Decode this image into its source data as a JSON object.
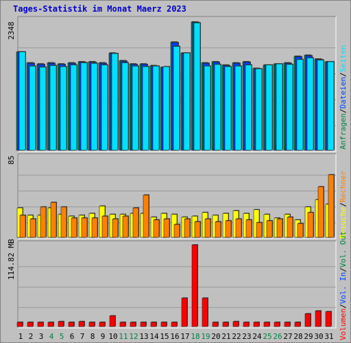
{
  "title": "Tages-Statistik im Monat Maerz 2023",
  "colors": {
    "background": "#c0c0c0",
    "grid": "#999999",
    "title": "#0000cc",
    "hits": "#008040",
    "files": "#0040ff",
    "pages": "#00e0ff",
    "visits": "#ffff00",
    "sites": "#ff8000",
    "volume": "#ff0000",
    "weekend_label": "#008040",
    "weekday_label": "#000000"
  },
  "chart_data": [
    {
      "type": "bar",
      "categories": [
        "1",
        "2",
        "3",
        "4",
        "5",
        "6",
        "7",
        "8",
        "9",
        "10",
        "11",
        "12",
        "13",
        "14",
        "15",
        "16",
        "17",
        "18",
        "19",
        "20",
        "21",
        "22",
        "23",
        "24",
        "25",
        "26",
        "27",
        "28",
        "29",
        "30",
        "31"
      ],
      "weekend_days": [
        "4",
        "5",
        "11",
        "12",
        "18",
        "19",
        "25",
        "26"
      ],
      "ymax_label": "2348",
      "ylim": [
        0,
        2348
      ],
      "series": [
        {
          "name": "Anfragen",
          "values": [
            1800,
            1600,
            1580,
            1600,
            1580,
            1600,
            1620,
            1620,
            1600,
            1780,
            1640,
            1580,
            1580,
            1550,
            1520,
            1980,
            1780,
            2348,
            1600,
            1620,
            1560,
            1600,
            1620,
            1500,
            1560,
            1580,
            1600,
            1720,
            1740,
            1670,
            1620
          ]
        },
        {
          "name": "Dateien",
          "values": [
            1790,
            1590,
            1570,
            1590,
            1570,
            1590,
            1610,
            1610,
            1590,
            1770,
            1630,
            1570,
            1570,
            1540,
            1510,
            1970,
            1770,
            2340,
            1590,
            1610,
            1550,
            1590,
            1610,
            1490,
            1550,
            1570,
            1590,
            1710,
            1730,
            1660,
            1610
          ]
        },
        {
          "name": "Seiten",
          "values": [
            1800,
            1540,
            1520,
            1550,
            1530,
            1560,
            1600,
            1590,
            1560,
            1770,
            1600,
            1540,
            1530,
            1540,
            1530,
            1900,
            1780,
            2330,
            1540,
            1570,
            1530,
            1540,
            1560,
            1490,
            1560,
            1580,
            1570,
            1660,
            1690,
            1650,
            1620
          ]
        }
      ],
      "legend": [
        "Anfragen",
        "Dateien",
        "Seiten"
      ]
    },
    {
      "type": "bar",
      "categories": [
        "1",
        "2",
        "3",
        "4",
        "5",
        "6",
        "7",
        "8",
        "9",
        "10",
        "11",
        "12",
        "13",
        "14",
        "15",
        "16",
        "17",
        "18",
        "19",
        "20",
        "21",
        "22",
        "23",
        "24",
        "25",
        "26",
        "27",
        "28",
        "29",
        "30",
        "31"
      ],
      "ymax_label": "85",
      "ylim": [
        0,
        85
      ],
      "series": [
        {
          "name": "Besuche",
          "values": [
            32,
            24,
            24,
            32,
            25,
            23,
            24,
            26,
            34,
            25,
            25,
            26,
            26,
            22,
            26,
            25,
            22,
            23,
            27,
            24,
            26,
            29,
            26,
            30,
            25,
            21,
            25,
            19,
            33,
            41,
            36
          ]
        },
        {
          "name": "Rechner",
          "values": [
            24,
            20,
            33,
            38,
            33,
            21,
            21,
            21,
            23,
            20,
            23,
            32,
            46,
            19,
            20,
            14,
            20,
            17,
            20,
            17,
            18,
            20,
            19,
            16,
            18,
            20,
            22,
            15,
            27,
            55,
            68
          ]
        }
      ],
      "legend": [
        "Besuche",
        "Rechner"
      ]
    },
    {
      "type": "bar",
      "categories": [
        "1",
        "2",
        "3",
        "4",
        "5",
        "6",
        "7",
        "8",
        "9",
        "10",
        "11",
        "12",
        "13",
        "14",
        "15",
        "16",
        "17",
        "18",
        "19",
        "20",
        "21",
        "22",
        "23",
        "24",
        "25",
        "26",
        "27",
        "28",
        "29",
        "30",
        "31"
      ],
      "ymax_label": "114.82 MB",
      "ylim": [
        0,
        114.82
      ],
      "series": [
        {
          "name": "Volumen",
          "values": [
            6,
            6,
            6,
            6,
            7,
            6,
            7,
            6,
            6,
            15,
            6,
            6,
            6,
            6,
            6,
            6,
            40,
            114.82,
            40,
            6,
            6,
            7,
            6,
            6,
            6,
            6,
            6,
            6,
            18,
            22,
            21
          ]
        }
      ],
      "legend": [
        "Volumen",
        "Vol. In",
        "Vol. Out"
      ]
    }
  ],
  "legend_top": [
    {
      "label": "Anfragen",
      "color": "#008040"
    },
    {
      "label": "/",
      "color": "#000000"
    },
    {
      "label": "Dateien",
      "color": "#0040ff"
    },
    {
      "label": "/",
      "color": "#000000"
    },
    {
      "label": "Seiten",
      "color": "#00e0ff"
    }
  ],
  "legend_mid": [
    {
      "label": "Besuche",
      "color": "#ffff00"
    },
    {
      "label": "/",
      "color": "#000000"
    },
    {
      "label": "Rechner",
      "color": "#ff8000"
    }
  ],
  "legend_bot": [
    {
      "label": "Volumen",
      "color": "#ff0000"
    },
    {
      "label": "/",
      "color": "#000000"
    },
    {
      "label": "Vol. In",
      "color": "#0040ff"
    },
    {
      "label": "/",
      "color": "#000000"
    },
    {
      "label": "Vol. Out",
      "color": "#008040"
    }
  ]
}
